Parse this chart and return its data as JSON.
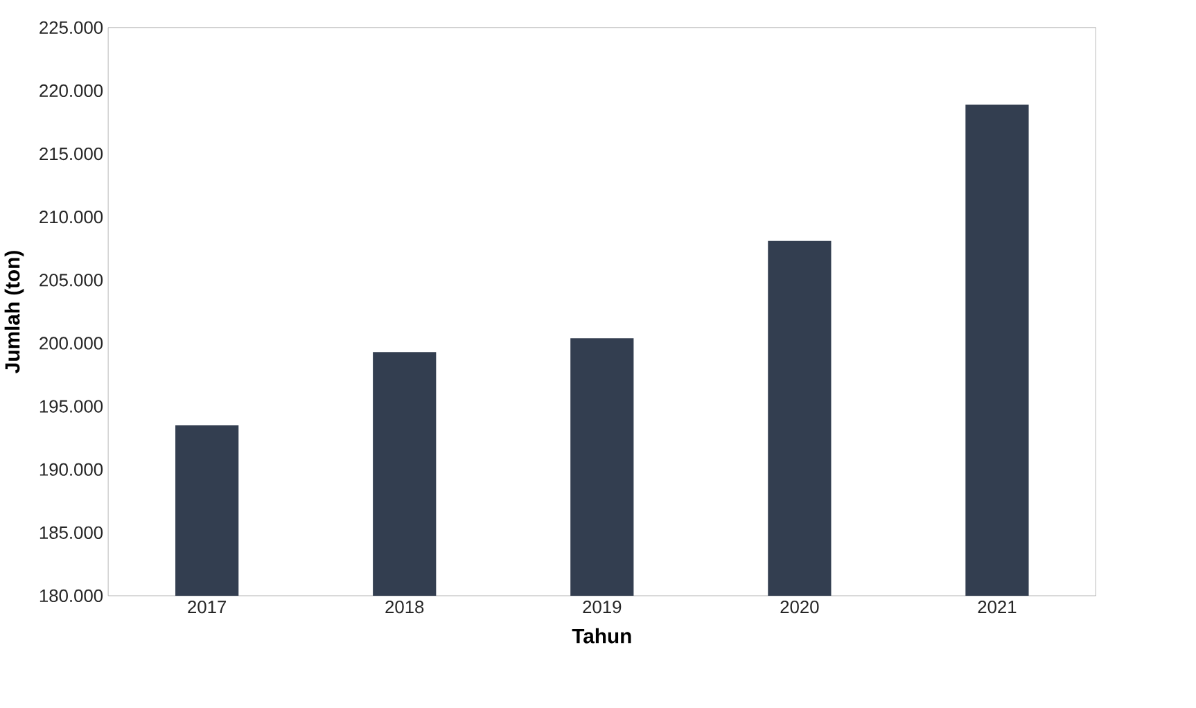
{
  "chart_data": {
    "type": "bar",
    "xlabel": "Tahun",
    "ylabel": "Jumlah (ton)",
    "categories": [
      "2017",
      "2018",
      "2019",
      "2020",
      "2021"
    ],
    "values": [
      193500,
      199300,
      200400,
      208100,
      218900
    ],
    "color": "#333e50",
    "ylim": [
      180000,
      225000
    ],
    "yticks": [
      {
        "value": 180000,
        "label": "180.000"
      },
      {
        "value": 185000,
        "label": "185.000"
      },
      {
        "value": 190000,
        "label": "190.000"
      },
      {
        "value": 195000,
        "label": "195.000"
      },
      {
        "value": 200000,
        "label": "200.000"
      },
      {
        "value": 205000,
        "label": "205.000"
      },
      {
        "value": 210000,
        "label": "210.000"
      },
      {
        "value": 215000,
        "label": "215.000"
      },
      {
        "value": 220000,
        "label": "220.000"
      },
      {
        "value": 225000,
        "label": "225.000"
      }
    ],
    "grid": false
  }
}
